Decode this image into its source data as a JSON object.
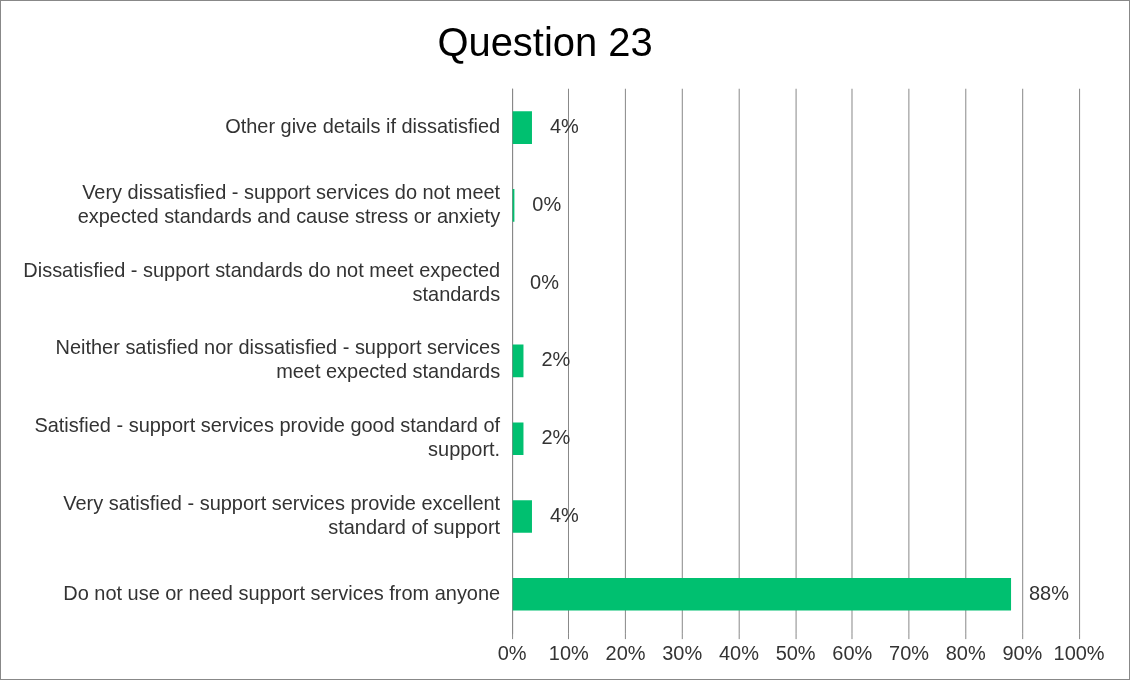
{
  "chart_data": {
    "type": "bar",
    "orientation": "horizontal",
    "title": "Question 23",
    "categories": [
      "Other give details if dissatisfied",
      "Very dissatisfied - support services do not meet expected standards and cause stress or anxiety",
      "Dissatisfied - support standards do not meet expected standards",
      "Neither satisfied nor dissatisfied - support services meet expected standards",
      "Satisfied - support services provide good standard of support.",
      "Very satisfied - support services provide excellent standard of support",
      "Do not use or need support services from anyone"
    ],
    "values": [
      3.5,
      0.4,
      0,
      2,
      2,
      3.5,
      88
    ],
    "value_labels": [
      "4%",
      "0%",
      "0%",
      "2%",
      "2%",
      "4%",
      "88%"
    ],
    "color": "#00c070",
    "xlim": [
      0,
      100
    ],
    "xticks": [
      {
        "value": 0,
        "label": "0%"
      },
      {
        "value": 10,
        "label": "10%"
      },
      {
        "value": 20,
        "label": "20%"
      },
      {
        "value": 30,
        "label": "30%"
      },
      {
        "value": 40,
        "label": "40%"
      },
      {
        "value": 50,
        "label": "50%"
      },
      {
        "value": 60,
        "label": "60%"
      },
      {
        "value": 70,
        "label": "70%"
      },
      {
        "value": 80,
        "label": "80%"
      },
      {
        "value": 90,
        "label": "90%"
      },
      {
        "value": 100,
        "label": "100%"
      }
    ],
    "grid": "x",
    "legend": false
  }
}
